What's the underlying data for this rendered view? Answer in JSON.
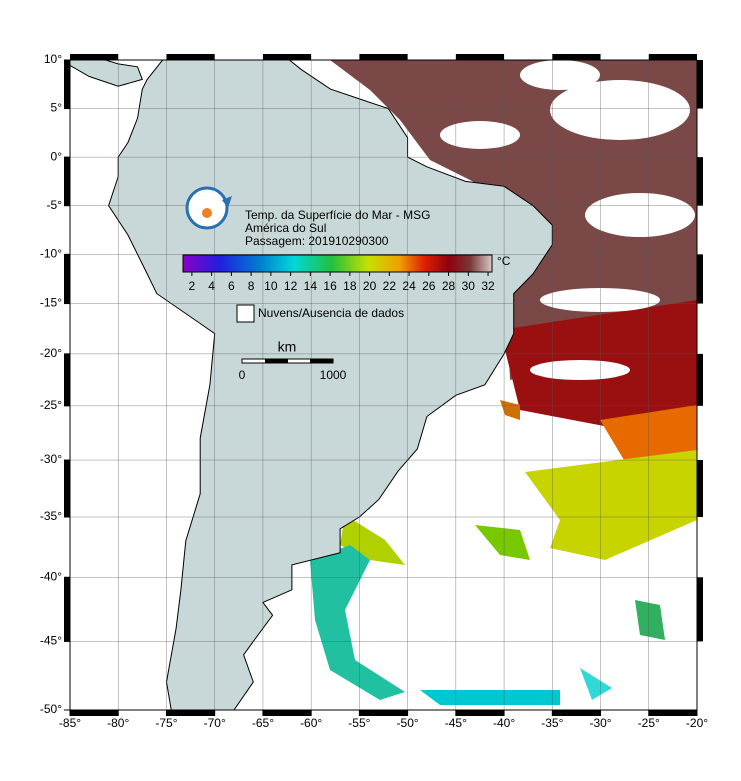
{
  "map": {
    "lon_ticks": [
      {
        "value": -85,
        "label": "-85°"
      },
      {
        "value": -80,
        "label": "-80°"
      },
      {
        "value": -75,
        "label": "-75°"
      },
      {
        "value": -70,
        "label": "-70°"
      },
      {
        "value": -65,
        "label": "-65°"
      },
      {
        "value": -60,
        "label": "-60°"
      },
      {
        "value": -55,
        "label": "-55°"
      },
      {
        "value": -50,
        "label": "-50°"
      },
      {
        "value": -45,
        "label": "-45°"
      },
      {
        "value": -40,
        "label": "-40°"
      },
      {
        "value": -35,
        "label": "-35°"
      },
      {
        "value": -30,
        "label": "-30°"
      },
      {
        "value": -25,
        "label": "-25°"
      },
      {
        "value": -20,
        "label": "-20°"
      }
    ],
    "lat_ticks": [
      {
        "value": 10,
        "label": "10°"
      },
      {
        "value": 5,
        "label": "5°"
      },
      {
        "value": 0,
        "label": "0°"
      },
      {
        "value": -5,
        "label": "-5°"
      },
      {
        "value": -10,
        "label": "-10°"
      },
      {
        "value": -15,
        "label": "-15°"
      },
      {
        "value": -20,
        "label": "-20°"
      },
      {
        "value": -25,
        "label": "-25°"
      },
      {
        "value": -30,
        "label": "-30°"
      },
      {
        "value": -35,
        "label": "-35°"
      },
      {
        "value": -40,
        "label": "-40°"
      },
      {
        "value": -45,
        "label": "-45°"
      },
      {
        "value": -50,
        "label": "-50°"
      }
    ],
    "xlim": [
      -85,
      -20
    ],
    "ylim": [
      -50,
      10
    ],
    "title_lines": [
      "Temp. da Superfície do Mar - MSG",
      "América do Sul",
      "Passagem: 201910290300"
    ],
    "colorbar": {
      "unit": "°C",
      "range": [
        1.1,
        32.4
      ],
      "ticks": [
        2,
        4,
        6,
        8,
        10,
        12,
        14,
        16,
        18,
        20,
        22,
        24,
        26,
        28,
        30,
        32
      ]
    },
    "legend": "Nuvens/Ausencia de dados",
    "scale_bar": {
      "unit": "km",
      "labels": [
        "0",
        "1000"
      ]
    }
  }
}
